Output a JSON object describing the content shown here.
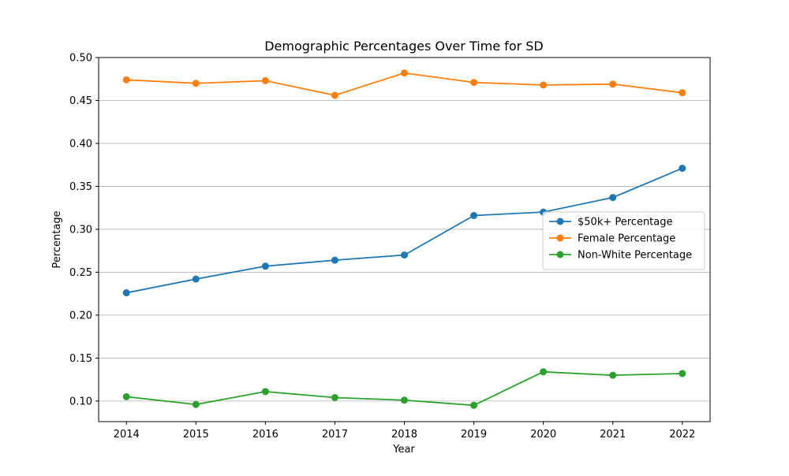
{
  "chart_data": {
    "type": "line",
    "title": "Demographic Percentages Over Time for SD",
    "xlabel": "Year",
    "ylabel": "Percentage",
    "x": [
      2014,
      2015,
      2016,
      2017,
      2018,
      2019,
      2020,
      2021,
      2022
    ],
    "x_tick_labels": [
      "2014",
      "2015",
      "2016",
      "2017",
      "2018",
      "2019",
      "2020",
      "2021",
      "2022"
    ],
    "y_ticks": [
      0.1,
      0.15,
      0.2,
      0.25,
      0.3,
      0.35,
      0.4,
      0.45,
      0.5
    ],
    "y_tick_labels": [
      "0.10",
      "0.15",
      "0.20",
      "0.25",
      "0.30",
      "0.35",
      "0.40",
      "0.45",
      "0.50"
    ],
    "xlim": [
      2013.6,
      2022.4
    ],
    "ylim": [
      0.076,
      0.5
    ],
    "grid": "horizontal",
    "legend_position": "center-right",
    "series": [
      {
        "name": "$50k+ Percentage",
        "color": "#1f77b4",
        "values": [
          0.226,
          0.242,
          0.257,
          0.264,
          0.27,
          0.316,
          0.32,
          0.337,
          0.371
        ]
      },
      {
        "name": "Female Percentage",
        "color": "#ff7f0e",
        "values": [
          0.474,
          0.47,
          0.473,
          0.456,
          0.482,
          0.471,
          0.468,
          0.469,
          0.459
        ]
      },
      {
        "name": "Non-White Percentage",
        "color": "#2ca02c",
        "values": [
          0.105,
          0.096,
          0.111,
          0.104,
          0.101,
          0.095,
          0.134,
          0.13,
          0.132
        ]
      }
    ]
  }
}
